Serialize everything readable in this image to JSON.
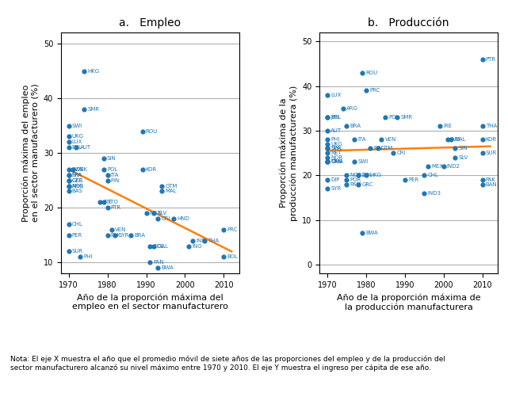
{
  "note": "Nota: El eje X muestra el año que el promedio móvil de siete años de las proporciones del empleo y de la producción del\nsector manufacturero alcanzó su nivel máximo entre 1970 y 2010. El eje Y muestra el ingreso per cápita de ese año.",
  "chart_data": [
    {
      "type": "scatter",
      "title": "a.   Empleo",
      "x_label": "Año de la proporción máxima del\nempleo en el sector manufacturero",
      "y_label": "Proporción máxima del empleo\nen el sector manufacturero (%)",
      "xlim": [
        1968,
        2014
      ],
      "ylim": [
        8,
        52
      ],
      "xticks": [
        1970,
        1980,
        1990,
        2000,
        2010
      ],
      "yticks": [
        10,
        20,
        30,
        40,
        50
      ],
      "grid": "y",
      "series": [
        {
          "type": "scatter",
          "labels": [
            "HKG",
            "SMR",
            "SWI",
            "UKG",
            "LUX",
            "BEL",
            "AUT",
            "SWE",
            "DNK",
            "POL",
            "SPA",
            "FRA",
            "ITA",
            "GER",
            "CZE",
            "NOR",
            "BAS",
            "ARG",
            "SIN",
            "ROU",
            "KOR",
            "FIN",
            "GTM",
            "MAL",
            "IRE",
            "TTO",
            "PTR",
            "MEX",
            "SLV",
            "CRI",
            "HND",
            "CHL",
            "VEN",
            "BRA",
            "PER",
            "PAK",
            "SYR",
            "IND",
            "THA",
            "COL",
            "GAL",
            "INO",
            "PRC",
            "BOL",
            "PAN",
            "BWA",
            "SUR",
            "PHI"
          ],
          "x": [
            1974,
            1974,
            1970,
            1970,
            1970,
            1970,
            1972,
            1970,
            1971,
            1979,
            1970,
            1970,
            1980,
            1970,
            1970,
            1970,
            1970,
            1970,
            1979,
            1989,
            1989,
            1980,
            1994,
            1994,
            1978,
            1979,
            1980,
            1990,
            1992,
            1993,
            1997,
            1970,
            1981,
            1986,
            1970,
            1980,
            1982,
            2002,
            2005,
            1991,
            1992,
            2001,
            2010,
            2010,
            1991,
            1993,
            1970,
            1973
          ],
          "values": [
            45,
            38,
            35,
            33,
            32,
            31,
            31,
            27,
            27,
            27,
            26,
            26,
            26,
            25,
            25,
            24,
            23,
            24,
            29,
            34,
            27,
            25,
            24,
            23,
            21,
            21,
            20,
            19,
            19,
            18,
            18,
            17,
            16,
            15,
            15,
            15,
            15,
            14,
            14,
            13,
            13,
            13,
            16,
            11,
            10,
            9,
            12,
            11
          ]
        },
        {
          "type": "line",
          "x": [
            1970,
            2012
          ],
          "values": [
            27,
            12
          ]
        }
      ]
    },
    {
      "type": "scatter",
      "title": "b.   Producción",
      "x_label": "Año de la proporción máxima de\nla producción manufacturera",
      "y_label": "Proporción máxima de la\nproducción manufacturera (%)",
      "xlim": [
        1968,
        2014
      ],
      "ylim": [
        -2,
        52
      ],
      "xticks": [
        1970,
        1980,
        1990,
        2000,
        2010
      ],
      "yticks": [
        0,
        10,
        20,
        30,
        40,
        50
      ],
      "grid": "y",
      "series": [
        {
          "type": "scatter",
          "labels": [
            "PTR",
            "ROU",
            "PRC",
            "LUX",
            "ARG",
            "JPN",
            "BEL",
            "POL",
            "SMR",
            "BRA",
            "IRE",
            "THA",
            "AUT",
            "ITA",
            "VEN",
            "PHI",
            "IND",
            "MAL",
            "KOR",
            "UKG",
            "SPA",
            "FIN",
            "GTM",
            "SWL",
            "SIN",
            "CRI",
            "SUR",
            "NET",
            "NOR",
            "CAN",
            "TRK",
            "OMA",
            "SWI",
            "SLV",
            "MEX",
            "IND2",
            "NOR2",
            "COL",
            "HKG",
            "CHL",
            "POR",
            "GRC",
            "PER",
            "PAM",
            "SYR",
            "DIP",
            "PAK",
            "BAN",
            "IND3",
            "BWA"
          ],
          "x": [
            2010,
            1979,
            1980,
            1970,
            1974,
            1970,
            1970,
            1985,
            1988,
            1975,
            1999,
            2010,
            1970,
            1977,
            1984,
            1970,
            2001,
            2002,
            2010,
            1970,
            1970,
            1981,
            1983,
            1970,
            2003,
            1987,
            2010,
            1970,
            1970,
            1970,
            1970,
            1970,
            1977,
            2003,
            1996,
            2000,
            1975,
            1978,
            1980,
            1995,
            1975,
            1978,
            1990,
            1975,
            1970,
            1970,
            2010,
            2010,
            1995,
            1979
          ],
          "values": [
            46,
            43,
            39,
            38,
            35,
            33,
            33,
            33,
            33,
            31,
            31,
            31,
            30,
            28,
            28,
            28,
            28,
            28,
            28,
            27,
            26,
            26,
            26,
            26,
            26,
            25,
            25,
            25,
            24,
            23,
            23,
            23,
            23,
            24,
            22,
            22,
            20,
            20,
            20,
            20,
            19,
            18,
            19,
            18,
            17,
            19,
            19,
            18,
            16,
            7
          ]
        },
        {
          "type": "line",
          "x": [
            1970,
            2012
          ],
          "values": [
            25.5,
            26.5
          ]
        }
      ]
    }
  ]
}
